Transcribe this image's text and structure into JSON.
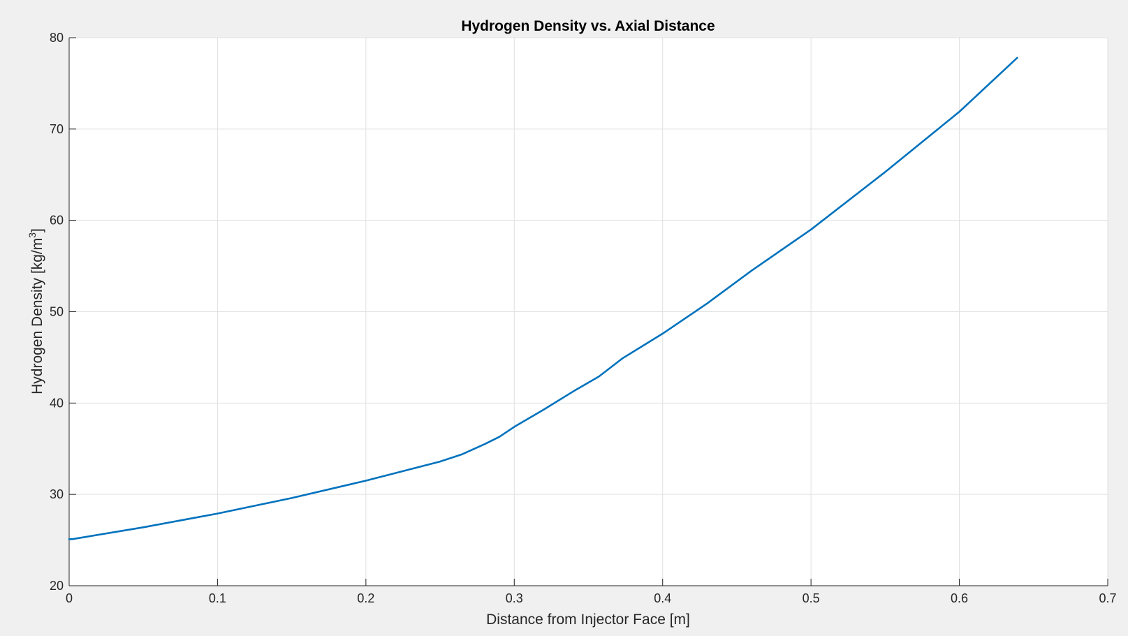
{
  "chart_data": {
    "type": "line",
    "title": "Hydrogen Density vs. Axial Distance",
    "xlabel": "Distance from Injector Face [m]",
    "ylabel": "Hydrogen Density [kg/m",
    "ylabel_superscript": "3",
    "ylabel_suffix": "]",
    "xlim": [
      0,
      0.7
    ],
    "ylim": [
      20,
      80
    ],
    "xticks": [
      0,
      0.1,
      0.2,
      0.3,
      0.4,
      0.5,
      0.6,
      0.7
    ],
    "xtick_labels": [
      "0",
      "0.1",
      "0.2",
      "0.3",
      "0.4",
      "0.5",
      "0.6",
      "0.7"
    ],
    "yticks": [
      20,
      30,
      40,
      50,
      60,
      70,
      80
    ],
    "ytick_labels": [
      "20",
      "30",
      "40",
      "50",
      "60",
      "70",
      "80"
    ],
    "grid": true,
    "line_color": "#0072BD",
    "series": [
      {
        "x": [
          0,
          0.002,
          0.05,
          0.1,
          0.15,
          0.2,
          0.25,
          0.265,
          0.28,
          0.29,
          0.3,
          0.32,
          0.34,
          0.357,
          0.373,
          0.4,
          0.43,
          0.46,
          0.5,
          0.55,
          0.6,
          0.639
        ],
        "y": [
          25.1,
          25.1,
          26.4,
          27.9,
          29.6,
          31.5,
          33.6,
          34.4,
          35.5,
          36.3,
          37.4,
          39.3,
          41.3,
          42.9,
          44.9,
          47.6,
          50.9,
          54.5,
          59.0,
          65.3,
          71.9,
          77.8
        ]
      }
    ]
  }
}
